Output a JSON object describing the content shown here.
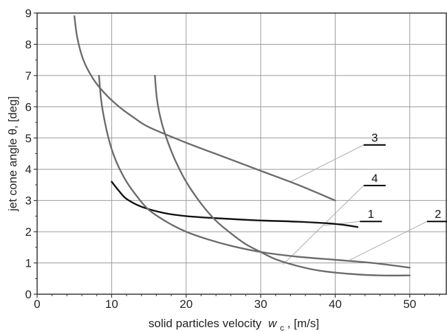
{
  "chart_data": {
    "type": "line",
    "xlabel": "solid particles velocity",
    "xlabel_symbol": "w",
    "xlabel_subscript": "c",
    "xlabel_unit": ", [m/s]",
    "ylabel": "jet cone angle θ, [deg]",
    "xlim": [
      0,
      55
    ],
    "ylim": [
      0,
      9
    ],
    "x_ticks": [
      0,
      10,
      20,
      30,
      40,
      50
    ],
    "y_ticks": [
      0,
      1,
      2,
      3,
      4,
      5,
      6,
      7,
      8,
      9
    ],
    "grid": true,
    "legend": "callout labels",
    "series": [
      {
        "name": "1",
        "color": "#111111",
        "label_at": [
          43.5,
          2.35
        ],
        "leader_to": [
          38.5,
          2.2
        ],
        "points": [
          [
            10,
            3.6
          ],
          [
            11,
            3.3
          ],
          [
            12,
            3.05
          ],
          [
            14,
            2.8
          ],
          [
            17,
            2.6
          ],
          [
            20,
            2.5
          ],
          [
            25,
            2.42
          ],
          [
            30,
            2.36
          ],
          [
            35,
            2.32
          ],
          [
            40,
            2.25
          ],
          [
            43,
            2.15
          ]
        ]
      },
      {
        "name": "2",
        "color": "#6b6b6b",
        "label_at": [
          52.5,
          2.35
        ],
        "leader_to": [
          42,
          1.1
        ],
        "points": [
          [
            8.3,
            7.0
          ],
          [
            8.6,
            6.2
          ],
          [
            9.1,
            5.5
          ],
          [
            9.8,
            4.8
          ],
          [
            10.7,
            4.2
          ],
          [
            12,
            3.6
          ],
          [
            13.5,
            3.1
          ],
          [
            15,
            2.7
          ],
          [
            17.5,
            2.3
          ],
          [
            20,
            2.0
          ],
          [
            23,
            1.75
          ],
          [
            26,
            1.55
          ],
          [
            30,
            1.35
          ],
          [
            35,
            1.2
          ],
          [
            40,
            1.1
          ],
          [
            45,
            1.0
          ],
          [
            50,
            0.85
          ]
        ]
      },
      {
        "name": "3",
        "color": "#6b6b6b",
        "label_at": [
          44,
          4.8
        ],
        "leader_to": [
          34,
          3.6
        ],
        "points": [
          [
            5,
            8.9
          ],
          [
            5.4,
            8.2
          ],
          [
            6.2,
            7.5
          ],
          [
            7.5,
            6.9
          ],
          [
            9,
            6.45
          ],
          [
            11,
            6.0
          ],
          [
            13,
            5.65
          ],
          [
            15,
            5.35
          ],
          [
            20,
            4.85
          ],
          [
            25,
            4.4
          ],
          [
            30,
            3.95
          ],
          [
            35,
            3.5
          ],
          [
            40,
            3.0
          ]
        ]
      },
      {
        "name": "4",
        "color": "#6b6b6b",
        "label_at": [
          44,
          3.5
        ],
        "leader_to": [
          33,
          0.95
        ],
        "points": [
          [
            15.8,
            7.0
          ],
          [
            16.1,
            6.2
          ],
          [
            16.7,
            5.5
          ],
          [
            17.5,
            4.9
          ],
          [
            18.5,
            4.3
          ],
          [
            20,
            3.6
          ],
          [
            22,
            2.9
          ],
          [
            24,
            2.35
          ],
          [
            26,
            1.95
          ],
          [
            28,
            1.6
          ],
          [
            30,
            1.35
          ],
          [
            32,
            1.12
          ],
          [
            35,
            0.9
          ],
          [
            38,
            0.75
          ],
          [
            42,
            0.65
          ],
          [
            46,
            0.6
          ],
          [
            50,
            0.6
          ]
        ]
      }
    ]
  }
}
